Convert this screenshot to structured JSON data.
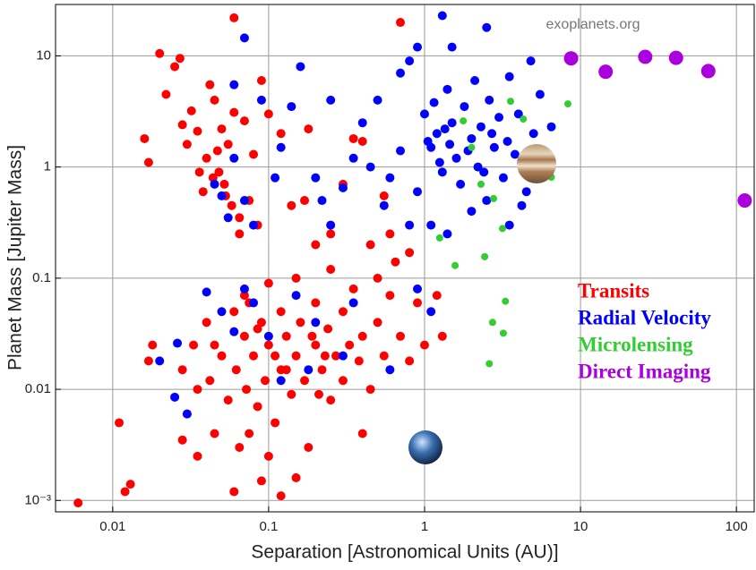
{
  "chart_data": {
    "type": "scatter",
    "xlabel": "Separation [Astronomical Units (AU)]",
    "ylabel": "Planet Mass [Jupiter Mass]",
    "watermark": "exoplanets.org",
    "xscale": "log",
    "yscale": "log",
    "grid": true,
    "legend": "right",
    "xlim": [
      0.0043,
      130
    ],
    "ylim": [
      0.00079,
      29
    ],
    "xticks": [
      0.01,
      0.1,
      1,
      10,
      100
    ],
    "yticks": [
      {
        "value": 0.001,
        "label": "10⁻³"
      },
      0.01,
      0.1,
      1,
      10
    ],
    "series": [
      {
        "name": "Transits",
        "color": "#ff0000",
        "marker_size": 5,
        "x": [
          0.006,
          0.011,
          0.012,
          0.013,
          0.017,
          0.018,
          0.016,
          0.017,
          0.02,
          0.022,
          0.025,
          0.027,
          0.028,
          0.03,
          0.032,
          0.035,
          0.038,
          0.04,
          0.042,
          0.045,
          0.048,
          0.05,
          0.052,
          0.055,
          0.058,
          0.06,
          0.036,
          0.044,
          0.047,
          0.053,
          0.065,
          0.07,
          0.075,
          0.08,
          0.085,
          0.09,
          0.06,
          0.065,
          0.1,
          0.12,
          0.14,
          0.18,
          0.2,
          0.17,
          0.25,
          0.3,
          0.35,
          0.4,
          0.45,
          0.55,
          0.6,
          0.8,
          0.7,
          0.028,
          0.03,
          0.033,
          0.035,
          0.04,
          0.042,
          0.045,
          0.05,
          0.055,
          0.06,
          0.062,
          0.065,
          0.07,
          0.072,
          0.075,
          0.08,
          0.085,
          0.09,
          0.095,
          0.1,
          0.1,
          0.11,
          0.12,
          0.12,
          0.13,
          0.14,
          0.15,
          0.15,
          0.16,
          0.17,
          0.18,
          0.2,
          0.2,
          0.22,
          0.24,
          0.25,
          0.27,
          0.3,
          0.3,
          0.33,
          0.35,
          0.38,
          0.4,
          0.45,
          0.5,
          0.55,
          0.6,
          0.7,
          0.8,
          0.9,
          1.0,
          0.4,
          0.06,
          0.09,
          0.12,
          0.15,
          0.5,
          0.25,
          0.07,
          0.045,
          0.11,
          0.085,
          0.13,
          0.19,
          0.23,
          0.028,
          0.035,
          0.1,
          0.075,
          0.21,
          1.2,
          1.3,
          0.65
        ],
        "y": [
          0.00095,
          0.005,
          0.0012,
          0.0014,
          0.018,
          0.025,
          1.8,
          1.1,
          10.5,
          4.5,
          8,
          9.5,
          2.4,
          1.6,
          3.2,
          2.1,
          0.6,
          1.2,
          5.5,
          4,
          0.9,
          2.2,
          0.7,
          1.6,
          0.45,
          3.1,
          0.9,
          0.8,
          1.4,
          0.55,
          0.35,
          2.6,
          0.5,
          1.3,
          0.3,
          6,
          22,
          0.25,
          3,
          2,
          0.45,
          2.2,
          0.2,
          0.5,
          0.25,
          0.7,
          1.8,
          1.7,
          0.2,
          0.55,
          0.25,
          0.17,
          20,
          0.015,
          0.006,
          0.025,
          0.01,
          0.04,
          0.012,
          0.004,
          0.02,
          0.008,
          0.05,
          0.015,
          0.003,
          0.03,
          0.01,
          0.06,
          0.02,
          0.007,
          0.04,
          0.012,
          0.09,
          0.025,
          0.005,
          0.015,
          0.05,
          0.03,
          0.009,
          0.02,
          0.1,
          0.04,
          0.012,
          0.003,
          0.025,
          0.06,
          0.015,
          0.035,
          0.008,
          0.02,
          0.05,
          0.012,
          0.025,
          0.08,
          0.018,
          0.03,
          0.01,
          0.04,
          0.02,
          0.07,
          0.03,
          0.018,
          0.06,
          0.025,
          0.004,
          0.0012,
          0.0015,
          0.0011,
          0.0016,
          0.1,
          0.12,
          0.07,
          0.025,
          0.02,
          0.035,
          0.015,
          0.03,
          0.02,
          0.0035,
          0.0025,
          0.0025,
          0.004,
          0.009,
          0.07,
          0.03,
          0.14
        ]
      },
      {
        "name": "Radial Velocity",
        "color": "#0000ff",
        "marker_size": 5,
        "x": [
          0.026,
          0.02,
          0.025,
          0.03,
          0.04,
          0.05,
          0.06,
          0.07,
          0.08,
          0.1,
          0.15,
          0.2,
          0.3,
          0.045,
          0.05,
          0.055,
          0.06,
          0.07,
          0.08,
          0.11,
          0.12,
          0.14,
          0.06,
          0.07,
          0.09,
          0.2,
          0.22,
          0.25,
          0.3,
          0.35,
          0.4,
          0.45,
          0.5,
          0.55,
          0.6,
          0.7,
          0.8,
          0.9,
          0.9,
          1.0,
          1.1,
          1.2,
          1.3,
          1.4,
          1.5,
          1.6,
          1.7,
          1.8,
          2.0,
          2.1,
          2.2,
          2.3,
          2.5,
          2.6,
          2.8,
          3.0,
          3.2,
          3.5,
          3.8,
          4.0,
          4.5,
          5.0,
          5.5,
          6.0,
          1.05,
          1.15,
          1.25,
          1.35,
          1.45,
          1.9,
          2.4,
          2.7,
          3.4,
          4.2,
          1.3,
          1.5,
          2.5,
          1.1,
          1.4,
          0.9,
          1.1,
          2,
          3.5,
          0.6,
          0.18,
          0.12,
          0.35,
          0.7,
          0.25,
          0.16,
          0.8,
          4.8,
          6.5
        ],
        "y": [
          0.026,
          0.018,
          0.0085,
          0.006,
          0.075,
          0.05,
          0.033,
          0.08,
          0.06,
          0.03,
          0.07,
          0.04,
          0.02,
          0.7,
          0.55,
          0.35,
          1.2,
          0.5,
          0.3,
          0.8,
          1.5,
          3.5,
          5.5,
          14.5,
          4,
          0.8,
          0.5,
          0.3,
          0.65,
          1.2,
          2.5,
          1,
          4,
          0.45,
          0.8,
          1.4,
          0.3,
          0.6,
          12,
          3,
          1.5,
          2,
          0.9,
          5,
          2.5,
          1.2,
          0.7,
          3.5,
          1.8,
          6,
          1,
          2.3,
          0.5,
          4,
          1.5,
          2.8,
          0.8,
          6.5,
          1.3,
          3,
          0.6,
          2,
          4.5,
          1,
          1.7,
          3.8,
          1.1,
          2.2,
          1.6,
          1.4,
          0.9,
          2,
          1.7,
          0.45,
          23,
          12,
          18,
          0.3,
          0.25,
          0.08,
          0.05,
          0.4,
          0.3,
          0.015,
          0.015,
          0.012,
          0.06,
          7,
          4,
          8,
          9,
          9,
          2.3
        ]
      },
      {
        "name": "Microlensing",
        "color": "#33cc33",
        "marker_size": 4,
        "x": [
          3.56,
          4.3,
          8.3,
          1.77,
          2.0,
          2.3,
          2.77,
          6.5,
          1.25,
          2.43,
          3.16,
          1.57,
          3.3,
          2.73,
          3.2,
          2.6
        ],
        "y": [
          3.9,
          2.7,
          3.7,
          2.6,
          1.5,
          0.7,
          0.52,
          0.81,
          0.23,
          0.156,
          0.28,
          0.13,
          0.062,
          0.04,
          0.032,
          0.017
        ]
      },
      {
        "name": "Direct Imaging",
        "color": "#aa00dd",
        "marker_size": 8,
        "x": [
          8.7,
          14.5,
          26,
          41,
          66,
          113
        ],
        "y": [
          9.5,
          7.2,
          9.8,
          9.6,
          7.3,
          0.5
        ]
      }
    ]
  }
}
